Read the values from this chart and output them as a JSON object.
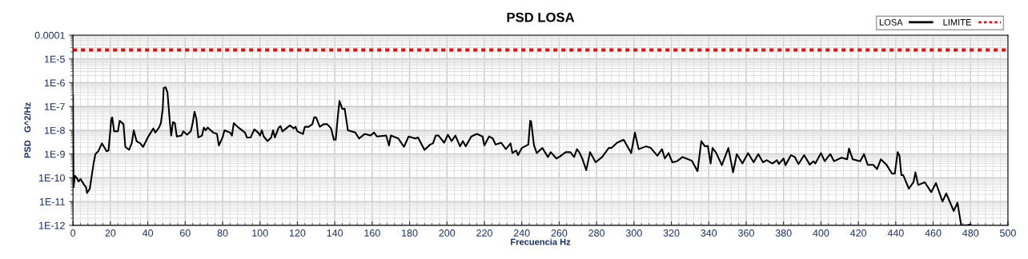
{
  "chart_data": {
    "type": "line",
    "title": "PSD LOSA",
    "xlabel": "Frecuencia Hz",
    "ylabel": "PSD   G^2/Hz",
    "log": "y",
    "grid": true,
    "legend": "top right",
    "marker": "none",
    "xlim": [
      0,
      500
    ],
    "xticks": [
      0,
      20,
      40,
      60,
      80,
      100,
      120,
      140,
      160,
      180,
      200,
      220,
      240,
      260,
      280,
      300,
      320,
      340,
      360,
      380,
      400,
      420,
      440,
      460,
      480,
      500
    ],
    "ylim": [
      1e-12,
      0.0001
    ],
    "yticks": [
      {
        "value": 1e-12,
        "label": "1E-12"
      },
      {
        "value": 1e-11,
        "label": "1E-11"
      },
      {
        "value": 1e-10,
        "label": "1E-10"
      },
      {
        "value": 1e-09,
        "label": "1E-9"
      },
      {
        "value": 1e-08,
        "label": "1E-8"
      },
      {
        "value": 1e-07,
        "label": "1E-7"
      },
      {
        "value": 1e-06,
        "label": "1E-6"
      },
      {
        "value": 1e-05,
        "label": "1E-5"
      },
      {
        "value": 0.0001,
        "label": "0.0001"
      }
    ],
    "series": [
      {
        "name": "LOSA",
        "color": "#000000",
        "line_style": "solid",
        "x": [
          0,
          0.3,
          1,
          2,
          3,
          4,
          6,
          7,
          7.5,
          9,
          11,
          12,
          13.5,
          15.5,
          18,
          19,
          20.5,
          21,
          22,
          24,
          25,
          27,
          28,
          30,
          31.5,
          32.5,
          34,
          36,
          37.5,
          40,
          43,
          44,
          46,
          47,
          48,
          48.5,
          49.5,
          50.5,
          52,
          52.5,
          53.5,
          54.5,
          55.5,
          58,
          59,
          61,
          63,
          64,
          65,
          66,
          67,
          69,
          70,
          71,
          72,
          75,
          77,
          78,
          80,
          81,
          84,
          85,
          86,
          88,
          92,
          93,
          95,
          97,
          99,
          100,
          101,
          102,
          104,
          106,
          107,
          108,
          110,
          111,
          112,
          114,
          116,
          118,
          119,
          120,
          123,
          124,
          126,
          128,
          129,
          130,
          132,
          134,
          136,
          138,
          139.5,
          140.5,
          141.5,
          142.5,
          144,
          145.3,
          147,
          151,
          153,
          156,
          159,
          161,
          162.5,
          167.5,
          169,
          170,
          174,
          177,
          179.5,
          183,
          184.5,
          188,
          191,
          192.5,
          194,
          195.5,
          198.5,
          200.5,
          202.5,
          204.5,
          207,
          208.5,
          210,
          213,
          216,
          219,
          220,
          222.5,
          224.5,
          226,
          229,
          231.5,
          234,
          235,
          237,
          238,
          240,
          243.5,
          244.5,
          245,
          246.5,
          248,
          251,
          254,
          255.5,
          258.5,
          260,
          263.5,
          266,
          268,
          269.5,
          271,
          272.5,
          274.5,
          276.5,
          279.5,
          283,
          286.5,
          288,
          291,
          294.5,
          298.5,
          300.5,
          302.5,
          306.5,
          309,
          312.5,
          315,
          316.5,
          318.5,
          320.5,
          323,
          326,
          331,
          334,
          336,
          338,
          339.5,
          341,
          342,
          344,
          347,
          350.5,
          353,
          355,
          358,
          361,
          364,
          366.5,
          369,
          371,
          374,
          376.5,
          377.5,
          380,
          381,
          384,
          386,
          388,
          391,
          394,
          396,
          397,
          400,
          402,
          405,
          407,
          411,
          414,
          415,
          417,
          421,
          423,
          425,
          428,
          430,
          432,
          435,
          438,
          439.5,
          441,
          442,
          443,
          444,
          447,
          448,
          449.5,
          450.5,
          452,
          455.5,
          459,
          461.5,
          465,
          467,
          471,
          473,
          475,
          478,
          480
        ],
        "values": [
          3e-07,
          4e-11,
          1.2e-10,
          1e-10,
          7e-11,
          9e-11,
          5e-11,
          4e-11,
          2.3e-11,
          3.5e-11,
          4e-10,
          1e-09,
          1.3e-09,
          2.8e-09,
          1.3e-09,
          1.4e-09,
          3e-08,
          3.5e-08,
          9e-09,
          9e-09,
          2.5e-08,
          1.8e-08,
          2e-09,
          1.5e-09,
          3e-09,
          1e-08,
          3.5e-09,
          2.8e-09,
          2e-09,
          5e-09,
          1.2e-08,
          8e-09,
          1.3e-08,
          2e-08,
          8e-08,
          6e-07,
          6.5e-07,
          4e-07,
          1.5e-08,
          6e-09,
          2.2e-08,
          2e-08,
          5.5e-09,
          6e-09,
          9e-09,
          6.5e-09,
          9e-09,
          2e-08,
          6e-08,
          3e-08,
          5e-09,
          6e-09,
          1.3e-08,
          1e-08,
          1.3e-08,
          8e-09,
          7e-09,
          2.3e-09,
          5e-09,
          1e-08,
          8e-09,
          6e-09,
          2e-08,
          1.4e-08,
          8e-09,
          5e-09,
          5e-09,
          1.1e-08,
          8e-09,
          6e-09,
          1e-08,
          5.5e-09,
          3.5e-09,
          5e-09,
          1e-08,
          5e-09,
          1.3e-08,
          1.5e-08,
          9e-09,
          1.2e-08,
          1.6e-08,
          1.2e-08,
          1.4e-08,
          9e-09,
          7e-09,
          1.4e-08,
          1.4e-08,
          1.8e-08,
          3.5e-08,
          3.5e-08,
          1.4e-08,
          1.8e-08,
          1.8e-08,
          1.2e-08,
          4e-09,
          4e-09,
          3e-08,
          1.7e-07,
          8e-08,
          8e-08,
          1e-08,
          8e-09,
          4.5e-09,
          7e-09,
          6e-09,
          8e-09,
          5.5e-09,
          6e-09,
          2.3e-09,
          6e-09,
          4.5e-09,
          2e-09,
          5.5e-09,
          4.5e-09,
          5e-09,
          1.5e-09,
          2.5e-09,
          2.8e-09,
          6e-09,
          6e-09,
          3e-09,
          6.5e-09,
          3.5e-09,
          6e-09,
          2.1e-09,
          3.5e-09,
          2.1e-09,
          5.5e-09,
          7e-09,
          5.5e-09,
          2.3e-09,
          5.5e-09,
          4.5e-09,
          2.5e-09,
          3e-09,
          1.6e-09,
          2.8e-09,
          1.1e-09,
          1.4e-09,
          9e-10,
          1.8e-09,
          2.5e-09,
          2.5e-08,
          2.4e-08,
          2.4e-09,
          1.1e-09,
          1.8e-09,
          7.5e-10,
          1.2e-09,
          6.5e-10,
          7.5e-10,
          1.2e-09,
          1.2e-09,
          7.5e-10,
          1.6e-09,
          1.1e-09,
          6e-10,
          2.1e-10,
          1.2e-09,
          4.5e-10,
          7.5e-10,
          1.8e-09,
          1.8e-09,
          3e-09,
          4e-09,
          1.1e-09,
          8e-09,
          1.6e-09,
          2.1e-09,
          1.8e-09,
          8.5e-10,
          1.6e-09,
          6.5e-10,
          1.1e-09,
          4.5e-10,
          5e-10,
          7.5e-10,
          5.2e-10,
          1.9e-10,
          3.5e-09,
          2.1e-09,
          2.2e-09,
          4e-10,
          1.8e-09,
          1.1e-09,
          3.4e-10,
          1.8e-09,
          1.7e-10,
          1e-09,
          4e-10,
          1.1e-09,
          4.5e-10,
          1e-09,
          4.5e-10,
          5.5e-10,
          4e-10,
          5.5e-10,
          3.8e-10,
          6.5e-10,
          3.4e-10,
          9e-10,
          7.5e-10,
          3.8e-10,
          9e-10,
          3.6e-10,
          5e-10,
          4e-10,
          1.1e-09,
          5e-10,
          1e-09,
          5e-10,
          7e-10,
          6e-10,
          1.7e-09,
          6e-10,
          5e-10,
          1e-09,
          3.5e-10,
          3.5e-10,
          2.3e-10,
          6e-10,
          3.6e-10,
          1.5e-10,
          1.5e-10,
          1.2e-09,
          8.5e-10,
          1.3e-10,
          1.3e-10,
          3.5e-11,
          4.5e-11,
          6.5e-11,
          1.7e-10,
          5e-11,
          6.5e-11,
          2.5e-11,
          6e-11,
          1e-11,
          2.2e-11,
          4e-12,
          9e-12,
          1e-12,
          1e-12,
          1.1e-12
        ]
      },
      {
        "name": "LIMITE",
        "color": "#ff0000",
        "line_style": "dotted",
        "x": [
          0,
          500
        ],
        "values": [
          2.4e-05,
          2.4e-05
        ]
      }
    ]
  }
}
